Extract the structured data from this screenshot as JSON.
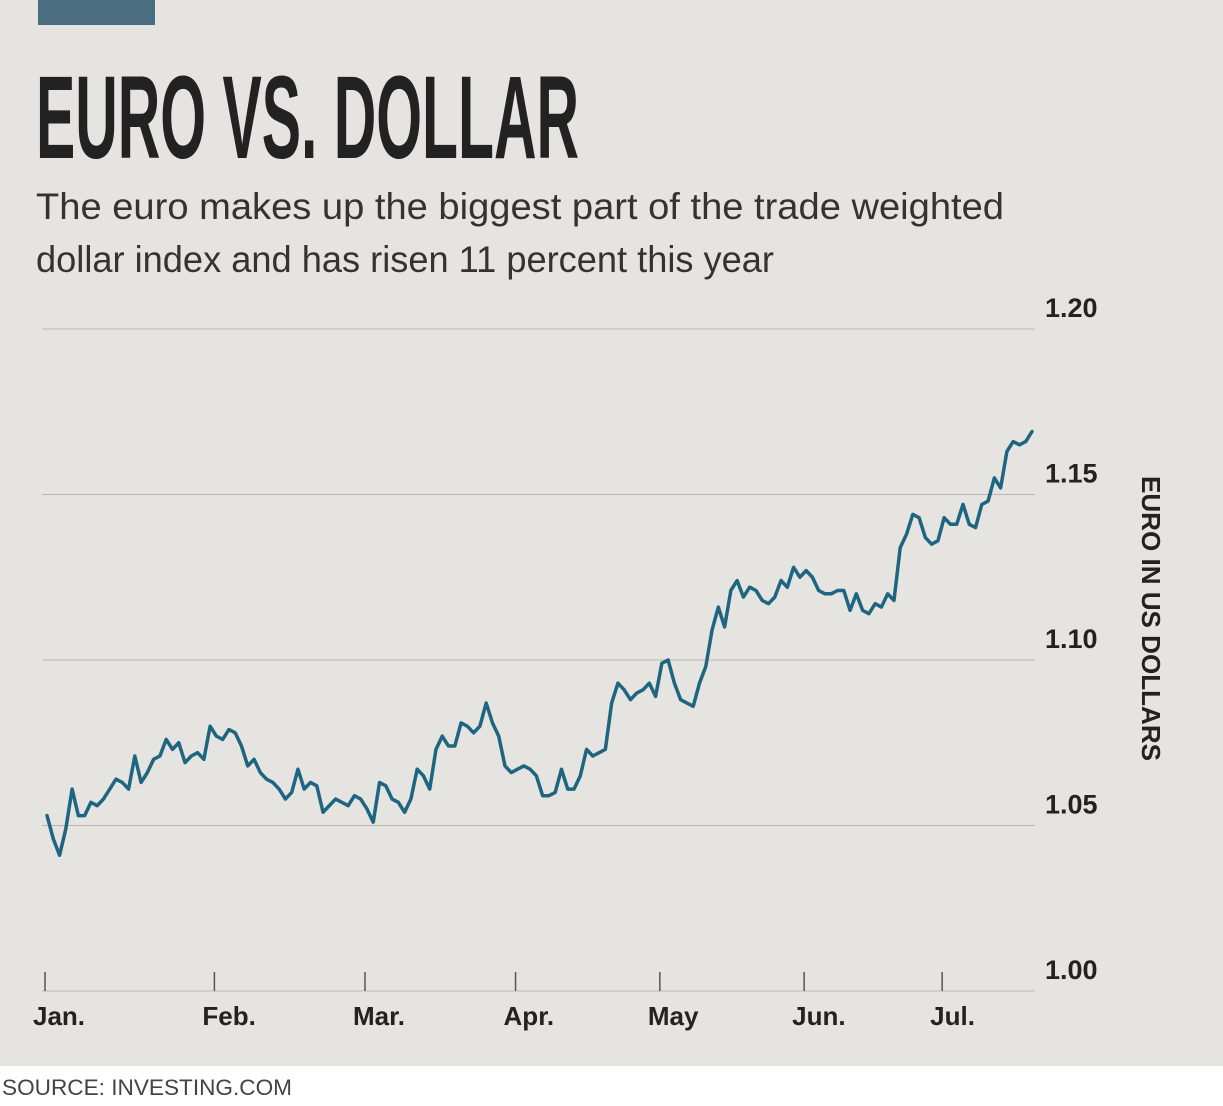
{
  "chart_data": {
    "type": "line",
    "title": "EURO VS. DOLLAR",
    "subtitle": [
      "The euro makes up the biggest part of the trade weighted",
      "dollar index and has risen 11 percent this year"
    ],
    "y_axis_label": "EURO IN US DOLLARS",
    "source": "SOURCE: INVESTING.COM",
    "color": "#1d6580",
    "grid": true,
    "ylim": [
      1.0,
      1.2
    ],
    "yticks": [
      {
        "value": 1.0,
        "label": "1.00"
      },
      1.05,
      {
        "value": 1.1,
        "label": "1.10"
      },
      1.15,
      {
        "value": 1.2,
        "label": "1.20"
      }
    ],
    "categories": [
      "Jan.",
      null,
      null,
      null,
      null,
      null,
      null,
      null,
      null,
      null,
      null,
      null,
      null,
      null,
      null,
      null,
      null,
      null,
      null,
      null,
      null,
      null,
      null,
      null,
      null,
      null,
      null,
      "Feb.",
      null,
      null,
      null,
      null,
      null,
      null,
      null,
      null,
      null,
      null,
      null,
      null,
      null,
      null,
      null,
      null,
      null,
      null,
      null,
      null,
      null,
      null,
      null,
      "Mar.",
      null,
      null,
      null,
      null,
      null,
      null,
      null,
      null,
      null,
      null,
      null,
      null,
      null,
      null,
      null,
      null,
      null,
      null,
      null,
      null,
      null,
      null,
      null,
      "Apr.",
      null,
      null,
      null,
      null,
      null,
      null,
      null,
      null,
      null,
      null,
      null,
      null,
      null,
      null,
      null,
      null,
      null,
      null,
      null,
      null,
      null,
      null,
      "May",
      null,
      null,
      null,
      null,
      null,
      null,
      null,
      null,
      null,
      null,
      null,
      null,
      null,
      null,
      null,
      null,
      null,
      null,
      null,
      null,
      null,
      null,
      "Jun.",
      null,
      null,
      null,
      null,
      null,
      null,
      null,
      null,
      null,
      null,
      null,
      null,
      null,
      null,
      null,
      null,
      null,
      null,
      null,
      null,
      null,
      "Jul.",
      null,
      null,
      null,
      null,
      null,
      null,
      null,
      null,
      null,
      null,
      null,
      null,
      null,
      null
    ],
    "values": [
      1.053,
      1.046,
      1.041,
      1.049,
      1.061,
      1.053,
      1.053,
      1.057,
      1.056,
      1.058,
      1.061,
      1.064,
      1.063,
      1.061,
      1.071,
      1.063,
      1.066,
      1.07,
      1.071,
      1.076,
      1.073,
      1.075,
      1.069,
      1.071,
      1.072,
      1.07,
      1.08,
      1.077,
      1.076,
      1.079,
      1.078,
      1.074,
      1.068,
      1.07,
      1.066,
      1.064,
      1.063,
      1.061,
      1.058,
      1.06,
      1.067,
      1.061,
      1.063,
      1.062,
      1.054,
      1.056,
      1.058,
      1.057,
      1.056,
      1.059,
      1.058,
      1.055,
      1.051,
      1.063,
      1.062,
      1.058,
      1.057,
      1.054,
      1.058,
      1.067,
      1.065,
      1.061,
      1.073,
      1.077,
      1.074,
      1.074,
      1.081,
      1.08,
      1.078,
      1.08,
      1.087,
      1.081,
      1.077,
      1.068,
      1.066,
      1.067,
      1.068,
      1.067,
      1.065,
      1.059,
      1.059,
      1.06,
      1.067,
      1.061,
      1.061,
      1.065,
      1.073,
      1.071,
      1.072,
      1.073,
      1.087,
      1.093,
      1.091,
      1.088,
      1.09,
      1.091,
      1.093,
      1.089,
      1.099,
      1.1,
      1.093,
      1.088,
      1.087,
      1.086,
      1.093,
      1.098,
      1.109,
      1.116,
      1.11,
      1.121,
      1.124,
      1.119,
      1.122,
      1.121,
      1.118,
      1.117,
      1.119,
      1.124,
      1.122,
      1.128,
      1.125,
      1.127,
      1.125,
      1.121,
      1.12,
      1.12,
      1.121,
      1.121,
      1.115,
      1.12,
      1.115,
      1.114,
      1.117,
      1.116,
      1.12,
      1.118,
      1.134,
      1.138,
      1.144,
      1.143,
      1.137,
      1.135,
      1.136,
      1.143,
      1.141,
      1.141,
      1.147,
      1.141,
      1.14,
      1.147,
      1.148,
      1.155,
      1.152,
      1.163,
      1.166,
      1.165,
      1.166,
      1.169
    ]
  }
}
